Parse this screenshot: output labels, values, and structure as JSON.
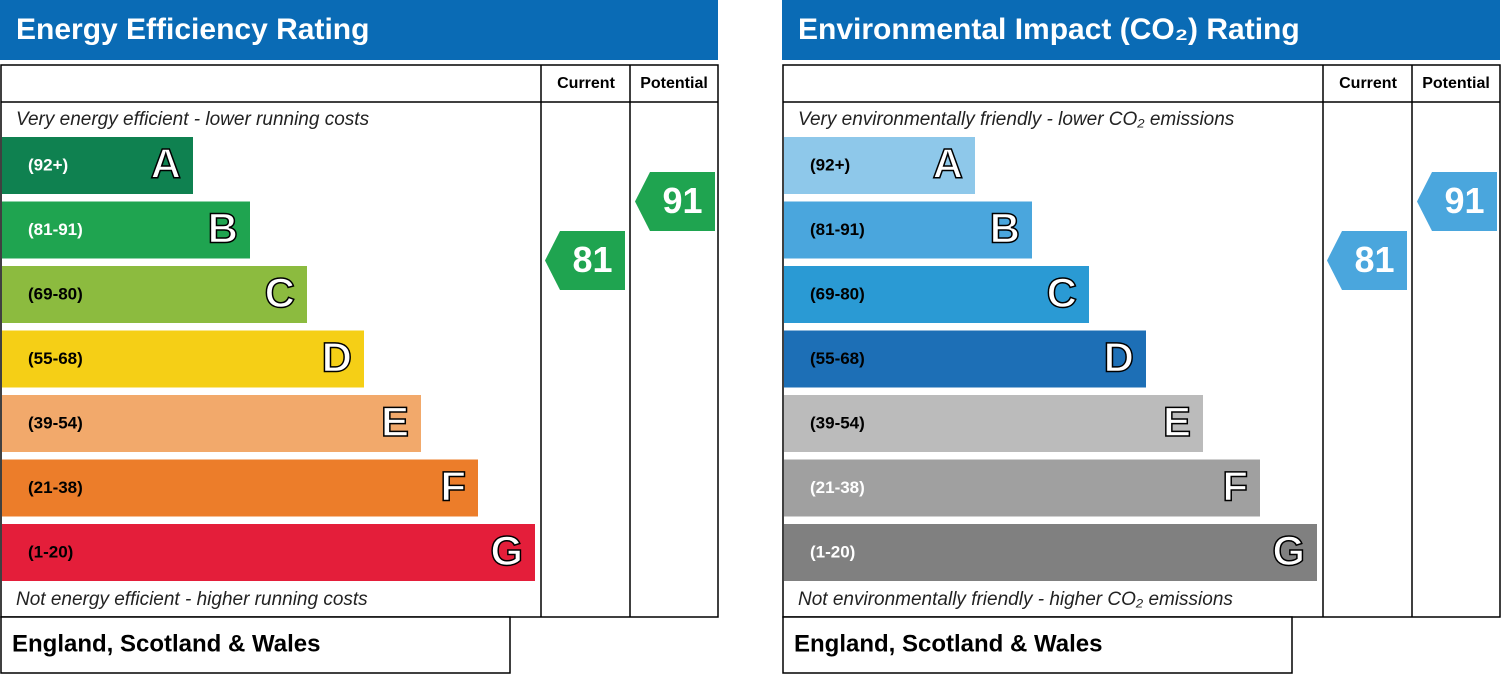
{
  "panels": [
    {
      "title": "Energy Efficiency Rating",
      "columns": [
        "Current",
        "Potential"
      ],
      "top_note": "Very energy efficient - lower running costs",
      "bottom_note": "Not energy efficient - higher running costs",
      "bands": [
        {
          "range": "(92+)",
          "letter": "A",
          "color": "#0f8150",
          "text_color": "#ffffff"
        },
        {
          "range": "(81-91)",
          "letter": "B",
          "color": "#1fa450",
          "text_color": "#ffffff"
        },
        {
          "range": "(69-80)",
          "letter": "C",
          "color": "#8cbb3f",
          "text_color": "#000000"
        },
        {
          "range": "(55-68)",
          "letter": "D",
          "color": "#f5cf16",
          "text_color": "#000000"
        },
        {
          "range": "(39-54)",
          "letter": "E",
          "color": "#f2a96b",
          "text_color": "#000000"
        },
        {
          "range": "(21-38)",
          "letter": "F",
          "color": "#ec7d2a",
          "text_color": "#000000"
        },
        {
          "range": "(1-20)",
          "letter": "G",
          "color": "#e41e3a",
          "text_color": "#000000"
        }
      ],
      "current": 81,
      "potential": 91,
      "arrow_color": "#1fa450",
      "region": "England, Scotland & Wales"
    },
    {
      "title": "Environmental Impact (CO₂) Rating",
      "columns": [
        "Current",
        "Potential"
      ],
      "top_note": "Very environmentally friendly - lower CO₂ emissions",
      "bottom_note": "Not environmentally friendly - higher CO₂ emissions",
      "bands": [
        {
          "range": "(92+)",
          "letter": "A",
          "color": "#8ec8ea",
          "text_color": "#000000"
        },
        {
          "range": "(81-91)",
          "letter": "B",
          "color": "#4aa6dd",
          "text_color": "#000000"
        },
        {
          "range": "(69-80)",
          "letter": "C",
          "color": "#2a9ad4",
          "text_color": "#000000"
        },
        {
          "range": "(55-68)",
          "letter": "D",
          "color": "#1d6fb6",
          "text_color": "#000000"
        },
        {
          "range": "(39-54)",
          "letter": "E",
          "color": "#bbbbbb",
          "text_color": "#000000"
        },
        {
          "range": "(21-38)",
          "letter": "F",
          "color": "#a0a0a0",
          "text_color": "#ffffff"
        },
        {
          "range": "(1-20)",
          "letter": "G",
          "color": "#808080",
          "text_color": "#ffffff"
        }
      ],
      "current": 81,
      "potential": 91,
      "arrow_color": "#4aa6dd",
      "region": "England, Scotland & Wales"
    }
  ]
}
